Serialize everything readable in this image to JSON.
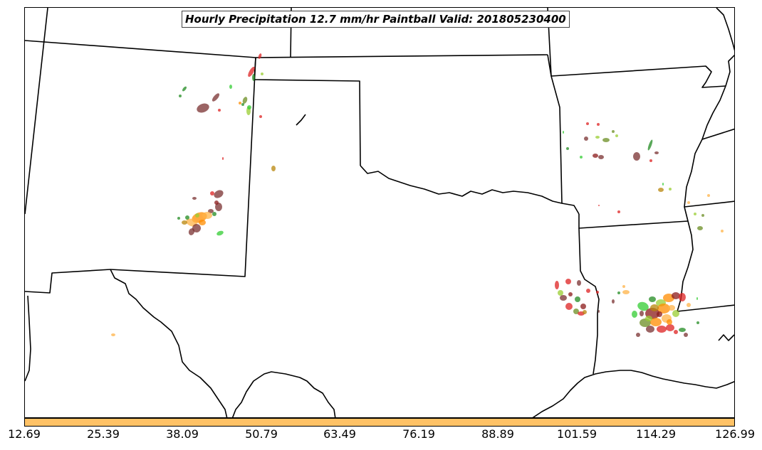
{
  "title": "Hourly Precipitation 12.7 mm/hr Paintball Valid: 201805230400",
  "colorbar": {
    "color": "#ffc266",
    "tick_labels": [
      "12.69",
      "25.39",
      "38.09",
      "50.79",
      "63.49",
      "76.19",
      "88.89",
      "101.59",
      "114.29",
      "126.99"
    ]
  },
  "paint_colors": [
    "#dd2222",
    "#8b1a1a",
    "#7a3030",
    "#228b22",
    "#33cc33",
    "#6b8e23",
    "#9acd32",
    "#ff8c00",
    "#ffb347",
    "#b8860b"
  ]
}
